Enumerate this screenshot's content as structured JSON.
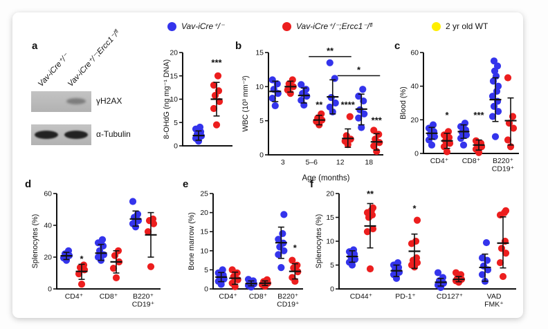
{
  "colors": {
    "blue": "#3434ec",
    "red": "#ec1e1e",
    "yellow": "#ffee00",
    "axis": "#111111"
  },
  "legend": {
    "items": [
      {
        "label": "Vav-iCre⁺/⁻",
        "color": "#3434ec",
        "italic": true
      },
      {
        "label": "Vav-iCre⁺/⁻;Ercc1⁻/ᶠˡ",
        "color": "#ec1e1e",
        "italic": true
      },
      {
        "label": "2 yr old WT",
        "color": "#ffee00",
        "italic": false
      }
    ]
  },
  "panels": [
    "a",
    "b",
    "c",
    "d",
    "e",
    "f"
  ],
  "blot": {
    "lane_labels": [
      "Vav-iCre⁺/⁻",
      "Vav-iCre⁺/⁻;Ercc1⁻/ᶠˡ"
    ],
    "rows": [
      {
        "label": "γH2AX",
        "bands": [
          "lane2-faint"
        ]
      },
      {
        "label": "α-Tubulin",
        "bands": [
          "lane1-dark",
          "lane2-dark"
        ]
      }
    ]
  },
  "chart_data": [
    {
      "id": "a",
      "type": "scatter",
      "ylabel": "8-OHdG (ng mg⁻¹ DNA)",
      "xlabel": "",
      "ylim": [
        0,
        20
      ],
      "yticks": [
        0,
        5,
        10,
        15,
        20
      ],
      "categories": [],
      "groups": [
        {
          "series": [
            {
              "color": "blue",
              "points": [
                1.0,
                1.6,
                2.1,
                2.5,
                3.0,
                3.6,
                4.0
              ],
              "mean": 2.2,
              "err": [
                1.2,
                3.2
              ]
            },
            {
              "color": "red",
              "points": [
                4.5,
                8.0,
                9.5,
                10.8,
                11.8,
                13.0,
                15.0
              ],
              "mean": 10.0,
              "err": [
                6.4,
                13.6
              ],
              "sig": "***",
              "sig_y": 17.2
            }
          ]
        }
      ]
    },
    {
      "id": "b",
      "type": "scatter",
      "ylabel": "WBC (10³ mm⁻²)",
      "xlabel": "Age (months)",
      "ylim": [
        0,
        15
      ],
      "yticks": [
        0,
        5,
        10,
        15
      ],
      "categories": [
        [
          "3"
        ],
        [
          "5–6"
        ],
        [
          "12"
        ],
        [
          "18"
        ]
      ],
      "groups": [
        {
          "series": [
            {
              "color": "blue",
              "points": [
                7.2,
                8.3,
                9.0,
                9.6,
                10.4,
                11.0
              ],
              "mean": 9.3,
              "err": [
                7.8,
                10.8
              ]
            },
            {
              "color": "red",
              "points": [
                9.0,
                9.5,
                10.0,
                10.4,
                11.0
              ],
              "mean": 10.0,
              "err": [
                9.2,
                10.8
              ]
            }
          ]
        },
        {
          "series": [
            {
              "color": "blue",
              "points": [
                7.3,
                8.0,
                8.6,
                9.0,
                9.6,
                10.3
              ],
              "mean": 8.7,
              "err": [
                7.6,
                9.8
              ]
            },
            {
              "color": "red",
              "points": [
                4.4,
                4.9,
                5.1,
                5.4,
                6.0
              ],
              "mean": 5.1,
              "err": [
                4.4,
                5.8
              ],
              "sig": "**",
              "sig_y": 6.9
            }
          ]
        },
        {
          "series": [
            {
              "color": "blue",
              "points": [
                6.3,
                7.0,
                7.6,
                8.4,
                11.2,
                13.5
              ],
              "mean": 8.5,
              "err": [
                6.0,
                11.0
              ]
            },
            {
              "color": "red",
              "points": [
                1.5,
                2.0,
                2.3,
                2.8,
                5.6
              ],
              "mean": 2.4,
              "err": [
                1.1,
                3.8
              ],
              "sig": "****",
              "sig_y": 6.9
            }
          ]
        },
        {
          "series": [
            {
              "color": "blue",
              "points": [
                4.0,
                5.4,
                6.0,
                6.6,
                7.9,
                8.6,
                9.6
              ],
              "mean": 6.7,
              "err": [
                4.4,
                8.9
              ]
            },
            {
              "color": "red",
              "points": [
                0.5,
                1.3,
                1.8,
                2.3,
                3.0,
                3.6
              ],
              "mean": 1.9,
              "err": [
                0.7,
                3.1
              ],
              "sig": "***",
              "sig_y": 4.6
            }
          ]
        }
      ],
      "sig_bars": [
        {
          "x1": 1,
          "x2": 2,
          "y": 14.4,
          "label": "**"
        },
        {
          "x1": 2,
          "x2": 3,
          "y": 11.6,
          "label": "*"
        }
      ]
    },
    {
      "id": "c",
      "type": "scatter",
      "ylabel": "Blood (%)",
      "xlabel": "",
      "ylim": [
        0,
        60
      ],
      "yticks": [
        0,
        20,
        40,
        60
      ],
      "categories": [
        [
          "CD4⁺"
        ],
        [
          "CD8⁺"
        ],
        [
          "B220⁺",
          "CD19⁺"
        ]
      ],
      "groups": [
        {
          "series": [
            {
              "color": "blue",
              "points": [
                5,
                8,
                10,
                11.5,
                13,
                15,
                17
              ],
              "mean": 12.0,
              "err": [
                8.5,
                15.5
              ]
            },
            {
              "color": "red",
              "points": [
                1,
                4,
                6,
                7.5,
                9.5,
                11,
                13
              ],
              "mean": 7.5,
              "err": [
                3,
                12
              ],
              "sig": "*",
              "sig_y": 21
            }
          ]
        },
        {
          "series": [
            {
              "color": "blue",
              "points": [
                5,
                9,
                11,
                12.5,
                14,
                16,
                18
              ],
              "mean": 13.0,
              "err": [
                9,
                17
              ]
            },
            {
              "color": "red",
              "points": [
                0.5,
                2.5,
                4,
                5,
                6,
                7.5
              ],
              "mean": 5.0,
              "err": [
                2,
                8
              ],
              "sig": "***",
              "sig_y": 21
            }
          ]
        },
        {
          "series": [
            {
              "color": "blue",
              "points": [
                10,
                22,
                25,
                28,
                31,
                34,
                37,
                40,
                43,
                46,
                49,
                52,
                55
              ],
              "mean": 32.0,
              "err": [
                19,
                45
              ]
            },
            {
              "color": "red",
              "points": [
                4,
                8,
                15,
                18,
                22,
                45
              ],
              "mean": 19.5,
              "err": [
                5,
                33
              ]
            }
          ]
        }
      ]
    },
    {
      "id": "d",
      "type": "scatter",
      "ylabel": "Splenocytes (%)",
      "xlabel": "",
      "ylim": [
        0,
        60
      ],
      "yticks": [
        0,
        20,
        40,
        60
      ],
      "categories": [
        [
          "CD4⁺"
        ],
        [
          "CD8⁺"
        ],
        [
          "B220⁺",
          "CD19⁺"
        ]
      ],
      "groups": [
        {
          "series": [
            {
              "color": "blue",
              "points": [
                18,
                19.5,
                21,
                22,
                24
              ],
              "mean": 20.8,
              "err": [
                18.5,
                23
              ]
            },
            {
              "color": "red",
              "points": [
                3,
                9.5,
                12,
                13.5,
                15
              ],
              "mean": 11.0,
              "err": [
                6,
                15.5
              ],
              "sig": "*",
              "sig_y": 17
            }
          ]
        },
        {
          "series": [
            {
              "color": "blue",
              "points": [
                18,
                20,
                21.5,
                24,
                27,
                29,
                31
              ],
              "mean": 22.5,
              "err": [
                18,
                28
              ]
            },
            {
              "color": "red",
              "points": [
                7,
                13,
                17,
                21,
                24
              ],
              "mean": 17.0,
              "err": [
                10,
                24
              ]
            }
          ]
        },
        {
          "series": [
            {
              "color": "blue",
              "points": [
                39,
                41,
                43,
                45,
                47,
                55
              ],
              "mean": 44.0,
              "err": [
                39.5,
                49
              ]
            },
            {
              "color": "red",
              "points": [
                14,
                36,
                41,
                43,
                44
              ],
              "mean": 34.0,
              "err": [
                20,
                48
              ]
            }
          ]
        }
      ]
    },
    {
      "id": "e",
      "type": "scatter",
      "ylabel": "Bone marrow (%)",
      "xlabel": "",
      "ylim": [
        0,
        25
      ],
      "yticks": [
        0,
        5,
        10,
        15,
        20,
        25
      ],
      "categories": [
        [
          "CD4⁺"
        ],
        [
          "CD8⁺"
        ],
        [
          "B220⁺",
          "CD19⁺"
        ]
      ],
      "groups": [
        {
          "series": [
            {
              "color": "blue",
              "points": [
                1.2,
                2.0,
                2.6,
                3.0,
                3.6,
                4.2,
                5.0
              ],
              "mean": 3.1,
              "err": [
                1.9,
                4.3
              ]
            },
            {
              "color": "red",
              "points": [
                0.6,
                1.5,
                2.4,
                3.2,
                4.2,
                5.0
              ],
              "mean": 2.8,
              "err": [
                1.2,
                4.4
              ]
            }
          ]
        },
        {
          "series": [
            {
              "color": "blue",
              "points": [
                0.5,
                0.9,
                1.3,
                1.7,
                2.1,
                2.5
              ],
              "mean": 1.4,
              "err": [
                0.8,
                2.1
              ]
            },
            {
              "color": "red",
              "points": [
                0.7,
                1.1,
                1.5,
                1.9,
                2.4
              ],
              "mean": 1.5,
              "err": [
                0.9,
                2.1
              ]
            }
          ]
        },
        {
          "series": [
            {
              "color": "blue",
              "points": [
                5.6,
                9,
                10,
                11,
                12,
                13,
                14.5,
                19.5
              ],
              "mean": 12.1,
              "err": [
                8.0,
                16.2
              ]
            },
            {
              "color": "red",
              "points": [
                2,
                3,
                4.5,
                5.5,
                6.2,
                7.5
              ],
              "mean": 4.6,
              "err": [
                2.6,
                6.6
              ],
              "sig": "*",
              "sig_y": 10
            }
          ]
        }
      ]
    },
    {
      "id": "f",
      "type": "scatter",
      "ylabel": "Splenocytes (%)",
      "xlabel": "",
      "ylim": [
        0,
        20
      ],
      "yticks": [
        0,
        5,
        10,
        15,
        20
      ],
      "categories": [
        [
          "CD44⁺"
        ],
        [
          "PD-1⁺"
        ],
        [
          "CD127⁺"
        ],
        [
          "VAD",
          "FMK⁺"
        ]
      ],
      "groups": [
        {
          "series": [
            {
              "color": "blue",
              "points": [
                5,
                5.6,
                6.2,
                6.8,
                7.3,
                7.8,
                8.2
              ],
              "mean": 6.8,
              "err": [
                5.6,
                8.0
              ]
            },
            {
              "color": "red",
              "points": [
                4.2,
                12,
                12.6,
                15,
                15.5,
                16,
                16.5,
                17
              ],
              "mean": 13.2,
              "err": [
                8.6,
                17.9
              ],
              "sig": "**",
              "sig_y": 19.3
            }
          ]
        },
        {
          "series": [
            {
              "color": "blue",
              "points": [
                2.2,
                3,
                3.5,
                4,
                4.5,
                5,
                5.5
              ],
              "mean": 3.8,
              "err": [
                2.6,
                5.0
              ]
            },
            {
              "color": "red",
              "points": [
                4.6,
                5,
                5.5,
                6,
                6.5,
                9.5,
                10,
                14.4
              ],
              "mean": 7.9,
              "err": [
                4.3,
                11.5
              ],
              "sig": "*",
              "sig_y": 16.2
            }
          ]
        },
        {
          "series": [
            {
              "color": "blue",
              "points": [
                0.3,
                0.8,
                1.2,
                1.7,
                2.4,
                3.4
              ],
              "mean": 1.4,
              "err": [
                0.6,
                2.2
              ]
            },
            {
              "color": "red",
              "points": [
                1.4,
                1.7,
                2.0,
                2.2,
                3.0,
                3.4
              ],
              "mean": 2.0,
              "err": [
                1.5,
                2.6
              ]
            }
          ]
        },
        {
          "series": [
            {
              "color": "blue",
              "points": [
                1.6,
                3,
                4,
                4.8,
                6,
                6.5,
                9.7
              ],
              "mean": 4.5,
              "err": [
                1.6,
                7.3
              ]
            },
            {
              "color": "red",
              "points": [
                2.6,
                5.5,
                7.5,
                8.5,
                10,
                15.5,
                16,
                16.4
              ],
              "mean": 9.6,
              "err": [
                4.4,
                15.1
              ]
            }
          ]
        }
      ]
    }
  ]
}
